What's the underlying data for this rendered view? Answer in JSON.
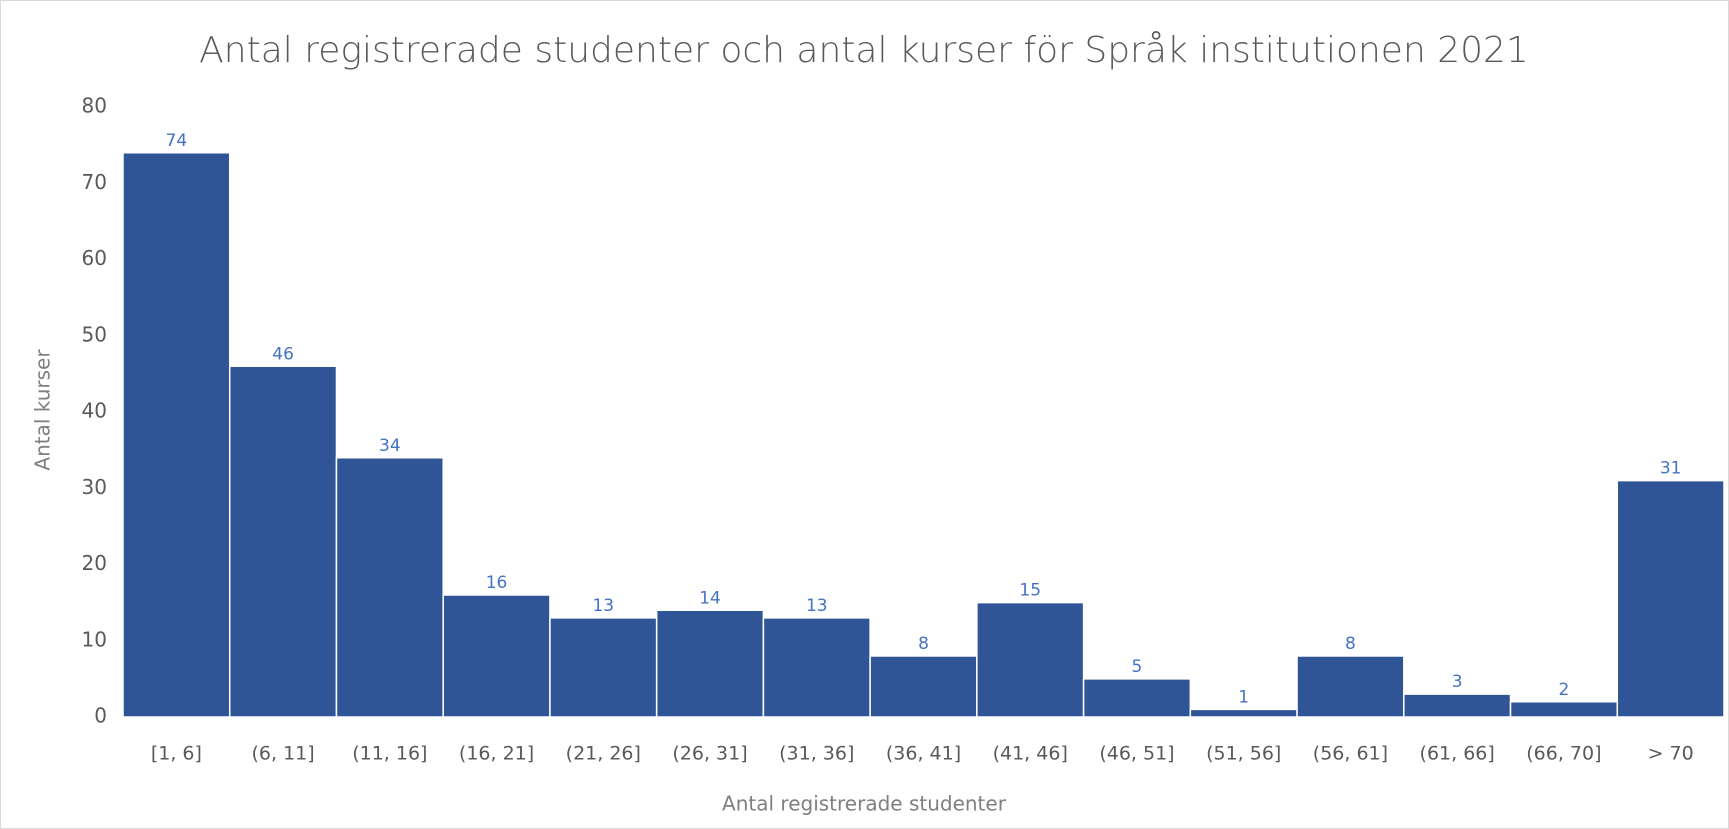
{
  "chart_data": {
    "type": "bar",
    "title": "Antal registrerade studenter och antal kurser för Språk institutionen 2021",
    "x_label": "Antal registrerade studenter",
    "y_label": "Antal kurser",
    "categories": [
      "[1, 6]",
      "(6, 11]",
      "(11, 16]",
      "(16, 21]",
      "(21, 26]",
      "(26, 31]",
      "(31, 36]",
      "(36, 41]",
      "(41, 46]",
      "(46, 51]",
      "(51, 56]",
      "(56, 61]",
      "(61, 66]",
      "(66, 70]",
      "> 70"
    ],
    "values": [
      74,
      46,
      34,
      16,
      13,
      14,
      13,
      8,
      15,
      5,
      1,
      8,
      3,
      2,
      31
    ],
    "color": "#2f5597",
    "label_color": "#4472c4",
    "ylim": [
      0,
      80
    ],
    "yticks": [
      0,
      10,
      20,
      30,
      40,
      50,
      60,
      70,
      80
    ],
    "grid": false
  }
}
